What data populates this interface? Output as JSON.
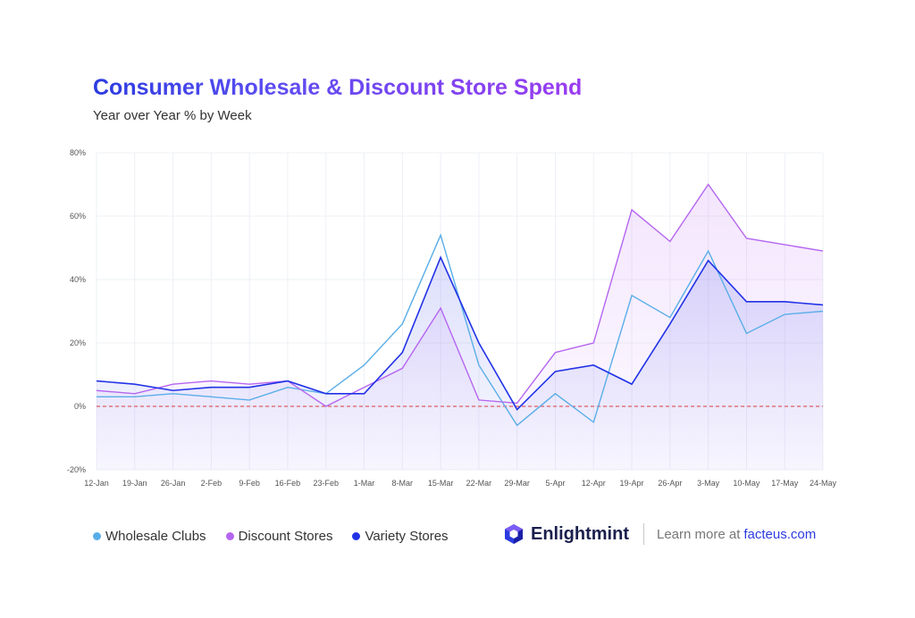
{
  "chart_data": {
    "type": "line",
    "title": "Consumer Wholesale & Discount Store Spend",
    "subtitle": "Year over Year % by Week",
    "categories": [
      "12-Jan",
      "19-Jan",
      "26-Jan",
      "2-Feb",
      "9-Feb",
      "16-Feb",
      "23-Feb",
      "1-Mar",
      "8-Mar",
      "15-Mar",
      "22-Mar",
      "29-Mar",
      "5-Apr",
      "12-Apr",
      "19-Apr",
      "26-Apr",
      "3-May",
      "10-May",
      "17-May",
      "24-May"
    ],
    "y_ticks": [
      "80%",
      "60%",
      "40%",
      "20%",
      "0%",
      "-20%"
    ],
    "ylim": [
      -20,
      80
    ],
    "reference_line": 0,
    "series": [
      {
        "name": "Wholesale Clubs",
        "color": "#5aaee8",
        "values": [
          3,
          3,
          4,
          3,
          2,
          6,
          4,
          13,
          26,
          54,
          13,
          -6,
          4,
          -5,
          35,
          28,
          49,
          23,
          29,
          30
        ]
      },
      {
        "name": "Discount Stores",
        "color": "#b566f0",
        "values": [
          5,
          4,
          7,
          8,
          7,
          8,
          0,
          6,
          12,
          31,
          2,
          1,
          17,
          20,
          62,
          52,
          70,
          53,
          51,
          49
        ]
      },
      {
        "name": "Variety Stores",
        "color": "#2233e6",
        "values": [
          8,
          7,
          5,
          6,
          6,
          8,
          4,
          4,
          17,
          47,
          20,
          -1,
          11,
          13,
          7,
          26,
          46,
          33,
          33,
          32
        ]
      }
    ]
  },
  "legend": [
    {
      "label": "Wholesale Clubs",
      "color": "#5aaee8"
    },
    {
      "label": "Discount Stores",
      "color": "#b566f0"
    },
    {
      "label": "Variety Stores",
      "color": "#2233e6"
    }
  ],
  "brand": {
    "name": "Enlightmint",
    "logo_icon": "enlightmint-hexagon-icon",
    "learn_text": "Learn more at",
    "link_text": "facteus.com"
  }
}
